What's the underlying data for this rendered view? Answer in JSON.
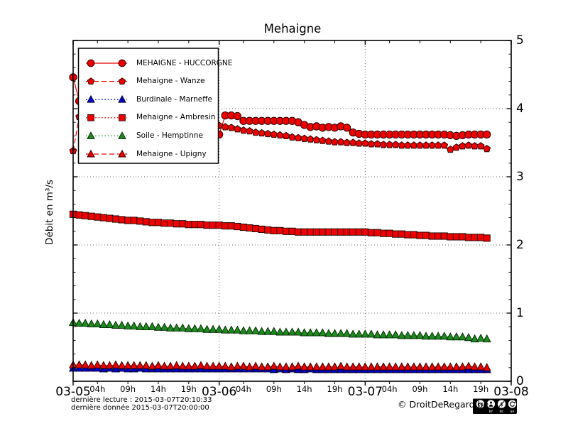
{
  "title": "Mehaigne",
  "ylabel": "Débit en m³/s",
  "footer": {
    "last_read": "dernière lecture : 2015-03-07T20:10:33",
    "last_data": "dernière donnée  2015-03-07T20:00:00",
    "copyright": "© DroitDeRegard.be",
    "license_badges": [
      "cc",
      "BY",
      "NC",
      "SA"
    ]
  },
  "chart_data": {
    "type": "line",
    "title": "Mehaigne",
    "ylabel": "Débit en m³/s",
    "x_unit": "hours from 2015-03-05T00:00, hourly samples",
    "xlim_hours": [
      0,
      72
    ],
    "ylim": [
      0,
      5
    ],
    "y_major_ticks": [
      0,
      1,
      2,
      3,
      4,
      5
    ],
    "y_minor_step": 0.2,
    "grid": {
      "h_lines": [
        1,
        2,
        3,
        4
      ],
      "v_lines_hours": [
        24,
        48
      ],
      "style": "dotted"
    },
    "legend_position": "upper-left",
    "x_day_ticks": [
      {
        "hour": 0,
        "label": "03-05"
      },
      {
        "hour": 24,
        "label": "03-06"
      },
      {
        "hour": 48,
        "label": "03-07"
      },
      {
        "hour": 72,
        "label": "03-08"
      }
    ],
    "x_hour_ticks": [
      {
        "hour": 4,
        "label": "04h"
      },
      {
        "hour": 9,
        "label": "09h"
      },
      {
        "hour": 14,
        "label": "14h"
      },
      {
        "hour": 19,
        "label": "19h"
      },
      {
        "hour": 28,
        "label": "04h"
      },
      {
        "hour": 33,
        "label": "09h"
      },
      {
        "hour": 38,
        "label": "14h"
      },
      {
        "hour": 43,
        "label": "19h"
      },
      {
        "hour": 52,
        "label": "04h"
      },
      {
        "hour": 57,
        "label": "09h"
      },
      {
        "hour": 62,
        "label": "14h"
      },
      {
        "hour": 67,
        "label": "19h"
      }
    ],
    "series": [
      {
        "name": "MEHAIGNE - HUCCORGNE",
        "color": "#ee0000",
        "edge": "#1a0000",
        "marker": "circle",
        "line": "solid",
        "values": [
          4.46,
          4.11,
          4.03,
          3.95,
          3.92,
          3.9,
          3.88,
          3.87,
          3.86,
          3.85,
          3.84,
          3.82,
          3.8,
          3.78,
          3.77,
          3.75,
          3.74,
          3.72,
          3.71,
          3.69,
          3.68,
          3.66,
          3.65,
          3.63,
          3.62,
          3.9,
          3.9,
          3.89,
          3.82,
          3.82,
          3.82,
          3.82,
          3.82,
          3.82,
          3.82,
          3.82,
          3.82,
          3.8,
          3.76,
          3.73,
          3.74,
          3.72,
          3.73,
          3.72,
          3.74,
          3.72,
          3.65,
          3.63,
          3.62,
          3.62,
          3.62,
          3.62,
          3.62,
          3.62,
          3.62,
          3.62,
          3.62,
          3.62,
          3.62,
          3.62,
          3.62,
          3.62,
          3.61,
          3.6,
          3.61,
          3.62,
          3.62,
          3.62,
          3.62
        ]
      },
      {
        "name": "Mehaigne - Wanze",
        "color": "#ee0000",
        "edge": "#1a0000",
        "marker": "pentagon",
        "line": "dashed",
        "values": [
          3.38,
          3.88,
          3.86,
          3.85,
          3.84,
          3.83,
          3.82,
          3.81,
          3.8,
          3.79,
          3.79,
          3.78,
          3.78,
          3.77,
          3.77,
          3.76,
          3.76,
          3.76,
          3.75,
          3.75,
          3.75,
          3.75,
          3.75,
          3.75,
          3.75,
          3.73,
          3.72,
          3.7,
          3.68,
          3.67,
          3.65,
          3.64,
          3.63,
          3.62,
          3.61,
          3.6,
          3.58,
          3.57,
          3.56,
          3.55,
          3.54,
          3.53,
          3.52,
          3.51,
          3.51,
          3.5,
          3.5,
          3.49,
          3.49,
          3.48,
          3.48,
          3.47,
          3.47,
          3.47,
          3.46,
          3.46,
          3.46,
          3.46,
          3.46,
          3.46,
          3.46,
          3.46,
          3.4,
          3.43,
          3.45,
          3.46,
          3.45,
          3.45,
          3.41
        ]
      },
      {
        "name": "Burdinale - Marneffe",
        "color": "#0000cc",
        "edge": "#000022",
        "marker": "triangle",
        "line": "dotted",
        "values": [
          0.19,
          0.19,
          0.19,
          0.19,
          0.19,
          0.18,
          0.19,
          0.18,
          0.19,
          0.18,
          0.18,
          0.19,
          0.18,
          0.18,
          0.18,
          0.18,
          0.18,
          0.18,
          0.18,
          0.18,
          0.18,
          0.18,
          0.18,
          0.18,
          0.18,
          0.18,
          0.18,
          0.18,
          0.18,
          0.18,
          0.18,
          0.18,
          0.18,
          0.17,
          0.18,
          0.17,
          0.18,
          0.17,
          0.17,
          0.18,
          0.17,
          0.17,
          0.17,
          0.17,
          0.17,
          0.17,
          0.17,
          0.17,
          0.17,
          0.17,
          0.17,
          0.17,
          0.17,
          0.17,
          0.17,
          0.17,
          0.17,
          0.17,
          0.17,
          0.17,
          0.17,
          0.17,
          0.17,
          0.17,
          0.17,
          0.17,
          0.17,
          0.17,
          0.17
        ]
      },
      {
        "name": "Mehaigne - Ambresin",
        "color": "#ee0000",
        "edge": "#1a0000",
        "marker": "square",
        "line": "dotted",
        "values": [
          2.45,
          2.44,
          2.43,
          2.42,
          2.41,
          2.4,
          2.39,
          2.38,
          2.37,
          2.36,
          2.36,
          2.35,
          2.34,
          2.33,
          2.33,
          2.32,
          2.32,
          2.31,
          2.31,
          2.3,
          2.3,
          2.3,
          2.29,
          2.29,
          2.29,
          2.28,
          2.28,
          2.27,
          2.26,
          2.25,
          2.24,
          2.23,
          2.22,
          2.21,
          2.21,
          2.2,
          2.2,
          2.19,
          2.19,
          2.19,
          2.19,
          2.19,
          2.19,
          2.19,
          2.19,
          2.19,
          2.19,
          2.19,
          2.19,
          2.18,
          2.18,
          2.17,
          2.17,
          2.16,
          2.16,
          2.15,
          2.15,
          2.14,
          2.14,
          2.13,
          2.13,
          2.13,
          2.12,
          2.12,
          2.12,
          2.11,
          2.11,
          2.11,
          2.1
        ]
      },
      {
        "name": "Soile - Hemptinne",
        "color": "#1e8a1e",
        "edge": "#002200",
        "marker": "triangle",
        "line": "dotted",
        "values": [
          0.86,
          0.85,
          0.85,
          0.84,
          0.84,
          0.83,
          0.83,
          0.82,
          0.82,
          0.81,
          0.81,
          0.8,
          0.8,
          0.8,
          0.79,
          0.79,
          0.78,
          0.78,
          0.78,
          0.77,
          0.77,
          0.77,
          0.76,
          0.76,
          0.76,
          0.75,
          0.75,
          0.75,
          0.74,
          0.74,
          0.74,
          0.73,
          0.73,
          0.73,
          0.72,
          0.72,
          0.72,
          0.72,
          0.71,
          0.71,
          0.71,
          0.71,
          0.7,
          0.7,
          0.7,
          0.7,
          0.69,
          0.69,
          0.69,
          0.69,
          0.68,
          0.68,
          0.68,
          0.68,
          0.67,
          0.67,
          0.67,
          0.67,
          0.66,
          0.66,
          0.66,
          0.66,
          0.65,
          0.65,
          0.65,
          0.64,
          0.62,
          0.63,
          0.62
        ]
      },
      {
        "name": "Mehaigne - Upigny",
        "color": "#ee0000",
        "edge": "#1a0000",
        "marker": "triangle",
        "line": "dashed",
        "values": [
          0.24,
          0.24,
          0.24,
          0.23,
          0.24,
          0.23,
          0.23,
          0.24,
          0.23,
          0.23,
          0.23,
          0.23,
          0.23,
          0.22,
          0.23,
          0.22,
          0.22,
          0.23,
          0.22,
          0.22,
          0.22,
          0.23,
          0.22,
          0.22,
          0.22,
          0.22,
          0.21,
          0.22,
          0.22,
          0.21,
          0.22,
          0.21,
          0.21,
          0.22,
          0.21,
          0.21,
          0.21,
          0.22,
          0.21,
          0.21,
          0.21,
          0.21,
          0.21,
          0.21,
          0.22,
          0.21,
          0.21,
          0.21,
          0.21,
          0.21,
          0.21,
          0.21,
          0.21,
          0.21,
          0.21,
          0.21,
          0.21,
          0.21,
          0.21,
          0.21,
          0.21,
          0.21,
          0.21,
          0.21,
          0.21,
          0.22,
          0.21,
          0.21,
          0.2
        ]
      }
    ]
  }
}
